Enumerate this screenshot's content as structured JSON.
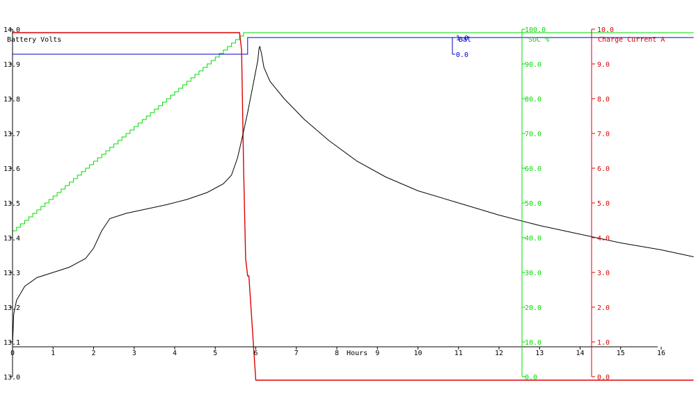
{
  "chart_data": {
    "type": "line",
    "x_axis": {
      "label": "Hours",
      "range": [
        0,
        16
      ],
      "ticks": [
        "0",
        "1",
        "2",
        "3",
        "4",
        "5",
        "6",
        "7",
        "8",
        "9",
        "10",
        "11",
        "12",
        "13",
        "14",
        "15",
        "16"
      ]
    },
    "axes": {
      "voltage": {
        "label": "Battery Volts",
        "color": "#000000",
        "range": [
          13.0,
          14.0
        ],
        "ticks": [
          "13.0",
          "13.1",
          "13.2",
          "13.3",
          "13.4",
          "13.5",
          "13.6",
          "13.7",
          "13.8",
          "13.9",
          "14.0"
        ]
      },
      "balance": {
        "label": "Bal",
        "color": "#0000cc",
        "range": [
          0,
          1
        ],
        "ticks": [
          "0.0",
          "1.0"
        ]
      },
      "soc": {
        "label": "SOC %",
        "color": "#00dd00",
        "range": [
          0,
          100
        ],
        "ticks": [
          "0.0",
          "10.0",
          "20.0",
          "30.0",
          "40.0",
          "50.0",
          "60.0",
          "70.0",
          "80.0",
          "90.0",
          "100.0"
        ]
      },
      "current": {
        "label": "Charge Current A",
        "color": "#dd0000",
        "range": [
          0,
          10
        ],
        "ticks": [
          "0.0",
          "1.0",
          "2.0",
          "3.0",
          "4.0",
          "5.0",
          "6.0",
          "7.0",
          "8.0",
          "9.0",
          "10.0"
        ]
      }
    },
    "series": [
      {
        "axis": "voltage",
        "color": "#000000",
        "step": false,
        "points": [
          [
            0,
            13.09
          ],
          [
            0.03,
            13.18
          ],
          [
            0.1,
            13.22
          ],
          [
            0.3,
            13.26
          ],
          [
            0.6,
            13.285
          ],
          [
            1.0,
            13.3
          ],
          [
            1.4,
            13.315
          ],
          [
            1.8,
            13.34
          ],
          [
            2.0,
            13.37
          ],
          [
            2.2,
            13.42
          ],
          [
            2.4,
            13.455
          ],
          [
            2.8,
            13.47
          ],
          [
            3.2,
            13.48
          ],
          [
            3.8,
            13.495
          ],
          [
            4.3,
            13.51
          ],
          [
            4.8,
            13.53
          ],
          [
            5.2,
            13.555
          ],
          [
            5.4,
            13.58
          ],
          [
            5.55,
            13.63
          ],
          [
            5.65,
            13.68
          ],
          [
            5.8,
            13.76
          ],
          [
            5.95,
            13.85
          ],
          [
            6.05,
            13.91
          ],
          [
            6.08,
            13.945
          ],
          [
            6.1,
            13.95
          ],
          [
            6.14,
            13.93
          ],
          [
            6.2,
            13.89
          ],
          [
            6.35,
            13.85
          ],
          [
            6.7,
            13.8
          ],
          [
            7.2,
            13.74
          ],
          [
            7.8,
            13.68
          ],
          [
            8.5,
            13.62
          ],
          [
            9.2,
            13.575
          ],
          [
            10,
            13.535
          ],
          [
            11,
            13.5
          ],
          [
            12,
            13.465
          ],
          [
            13,
            13.435
          ],
          [
            14,
            13.41
          ],
          [
            15,
            13.385
          ],
          [
            16,
            13.365
          ],
          [
            16.8,
            13.345
          ]
        ]
      },
      {
        "axis": "current",
        "color": "#dd0000",
        "step": false,
        "points": [
          [
            0,
            9.9
          ],
          [
            5.55,
            9.9
          ],
          [
            5.6,
            9.9
          ],
          [
            5.65,
            9.4
          ],
          [
            5.7,
            6.0
          ],
          [
            5.75,
            3.4
          ],
          [
            5.8,
            2.9
          ],
          [
            5.83,
            2.9
          ],
          [
            6.0,
            -0.1
          ],
          [
            6.1,
            -0.1
          ],
          [
            16.8,
            -0.1
          ]
        ]
      },
      {
        "axis": "soc",
        "color": "#00dd00",
        "step": true,
        "points": [
          [
            0,
            42
          ],
          [
            0.1,
            43
          ],
          [
            0.2,
            44
          ],
          [
            0.3,
            45
          ],
          [
            0.4,
            46
          ],
          [
            0.5,
            47
          ],
          [
            0.6,
            48
          ],
          [
            0.7,
            49
          ],
          [
            0.8,
            50
          ],
          [
            0.9,
            51
          ],
          [
            1.0,
            52
          ],
          [
            1.1,
            53
          ],
          [
            1.2,
            54
          ],
          [
            1.3,
            55
          ],
          [
            1.4,
            56
          ],
          [
            1.5,
            57
          ],
          [
            1.6,
            58
          ],
          [
            1.7,
            59
          ],
          [
            1.8,
            60
          ],
          [
            1.9,
            61
          ],
          [
            2.0,
            62
          ],
          [
            2.1,
            63
          ],
          [
            2.2,
            64
          ],
          [
            2.3,
            65
          ],
          [
            2.4,
            66
          ],
          [
            2.5,
            67
          ],
          [
            2.6,
            68
          ],
          [
            2.7,
            69
          ],
          [
            2.8,
            70
          ],
          [
            2.9,
            71
          ],
          [
            3.0,
            72
          ],
          [
            3.1,
            73
          ],
          [
            3.2,
            74
          ],
          [
            3.3,
            75
          ],
          [
            3.4,
            76
          ],
          [
            3.5,
            77
          ],
          [
            3.6,
            78
          ],
          [
            3.7,
            79
          ],
          [
            3.8,
            80
          ],
          [
            3.9,
            81
          ],
          [
            4.0,
            82
          ],
          [
            4.1,
            83
          ],
          [
            4.2,
            84
          ],
          [
            4.3,
            85
          ],
          [
            4.4,
            86
          ],
          [
            4.5,
            87
          ],
          [
            4.6,
            88
          ],
          [
            4.7,
            89
          ],
          [
            4.8,
            90
          ],
          [
            4.9,
            91
          ],
          [
            5.0,
            92
          ],
          [
            5.1,
            93
          ],
          [
            5.2,
            94
          ],
          [
            5.3,
            95
          ],
          [
            5.4,
            96
          ],
          [
            5.5,
            97
          ],
          [
            5.6,
            98
          ],
          [
            5.7,
            99
          ],
          [
            16.8,
            99
          ]
        ]
      },
      {
        "axis": "balance",
        "color": "#0000cc",
        "step": true,
        "points": [
          [
            0,
            0
          ],
          [
            5.8,
            0
          ],
          [
            5.8,
            1
          ],
          [
            16.8,
            1
          ]
        ]
      }
    ],
    "grid": false,
    "legend": "none"
  }
}
